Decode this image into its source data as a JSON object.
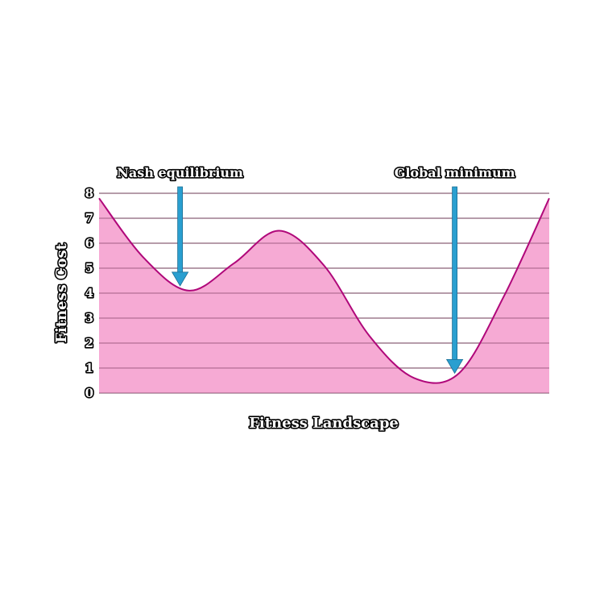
{
  "chart_data": {
    "type": "area",
    "title": "",
    "xlabel": "Fitness Landscape",
    "ylabel": "Fitness Cost",
    "ylim": [
      0,
      8
    ],
    "yticks": [
      "0",
      "1",
      "2",
      "3",
      "4",
      "5",
      "6",
      "7",
      "8"
    ],
    "grid": true,
    "x": [
      0,
      0.1,
      0.2,
      0.3,
      0.4,
      0.5,
      0.6,
      0.7,
      0.8,
      0.9,
      1.0
    ],
    "values": [
      7.8,
      5.4,
      4.1,
      5.2,
      6.5,
      5.1,
      2.3,
      0.6,
      0.8,
      3.9,
      7.8
    ],
    "annotations": [
      {
        "label": "Nash equilibrium",
        "x": 0.18,
        "y": 4.1
      },
      {
        "label": "Global minimum",
        "x": 0.79,
        "y": 0.6
      }
    ],
    "colors": {
      "fill": "#f59bcc",
      "line": "#b0087a",
      "arrow": "#2a9fd0",
      "grid": "#b3b3b3"
    }
  }
}
